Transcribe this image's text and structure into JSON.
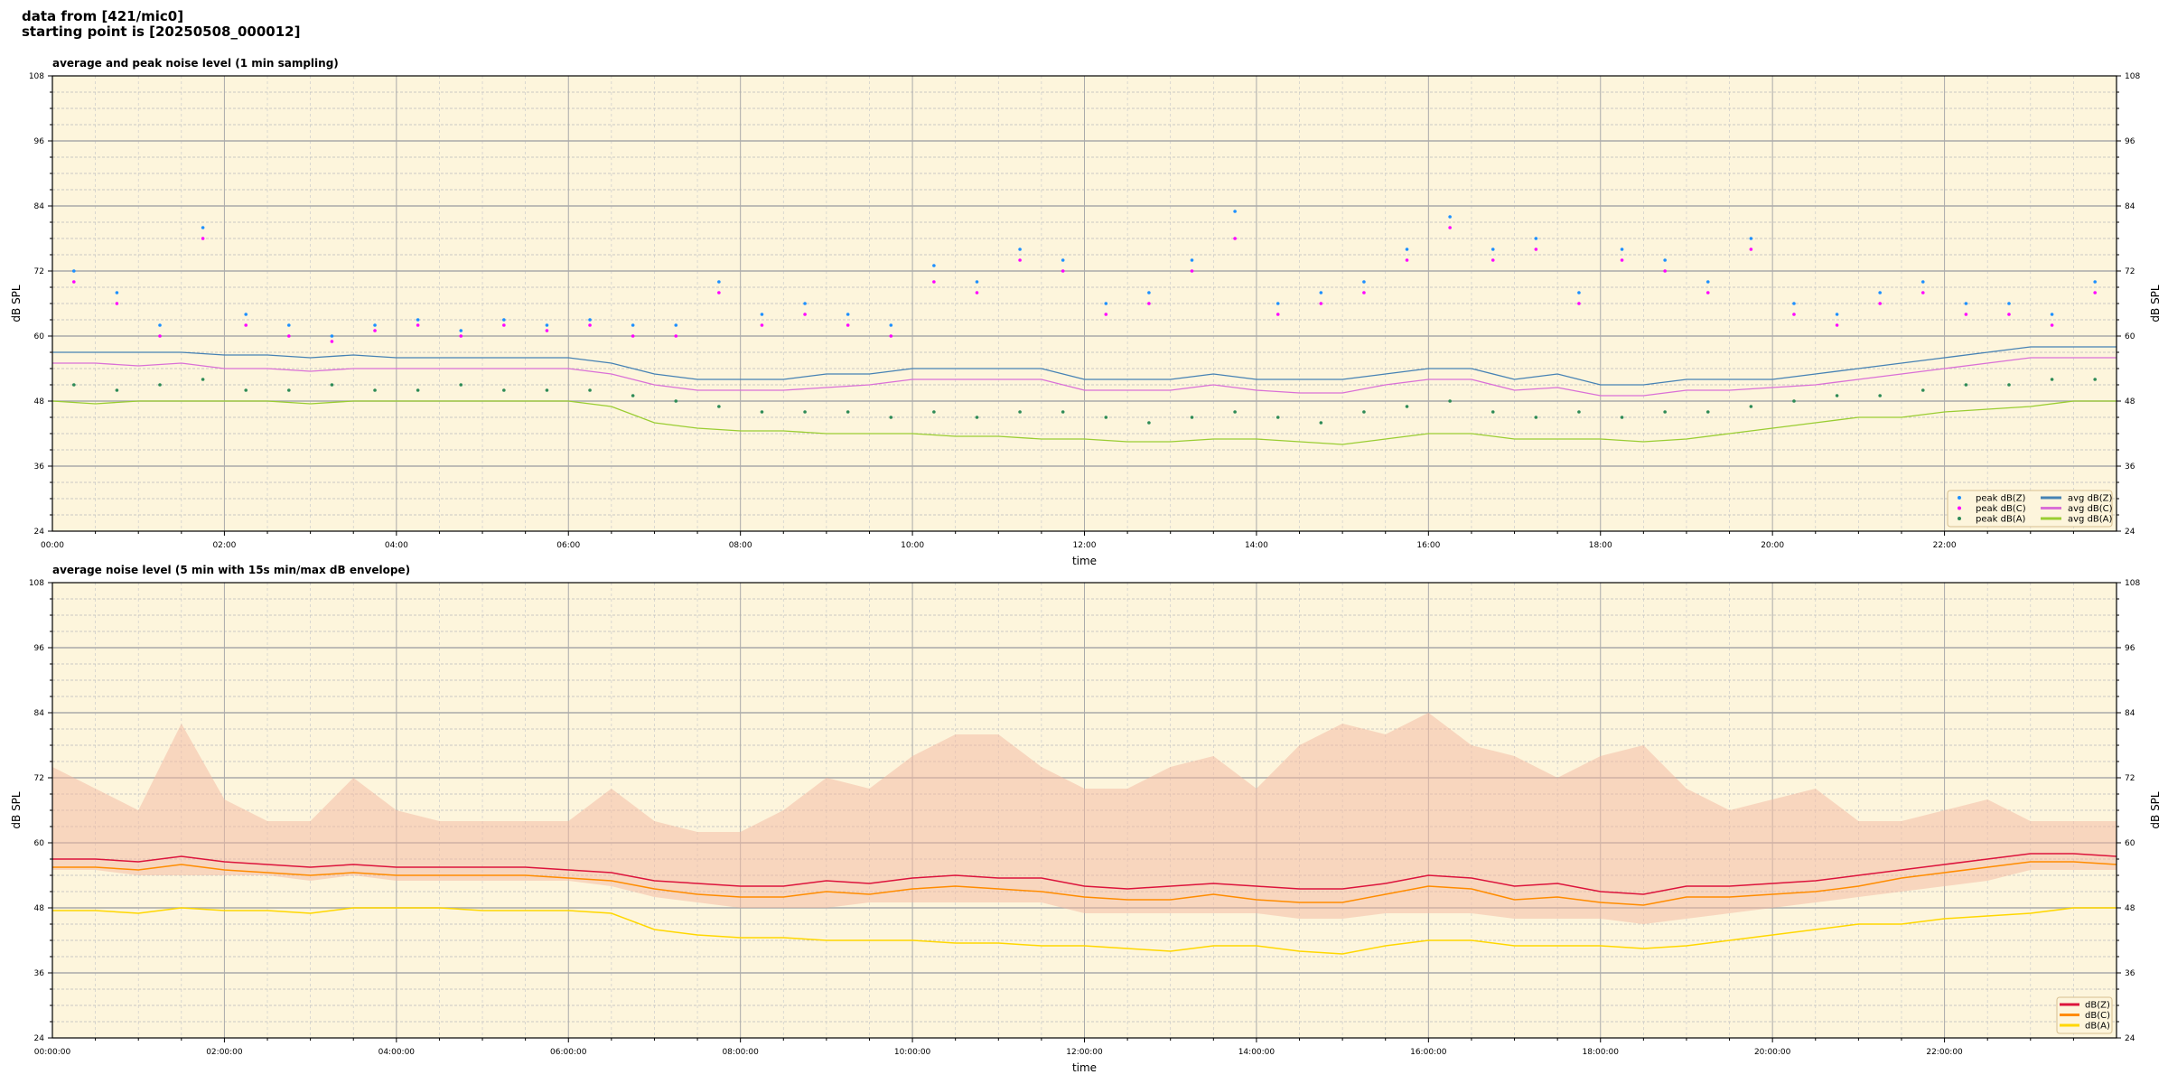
{
  "header": {
    "line1": "data from [421/mic0]",
    "line2": "starting point is [20250508_000012]"
  },
  "colors": {
    "background": "#fdf5dc",
    "peakZ": "#1e90ff",
    "peakC": "#ff00ff",
    "peakA": "#2e8b57",
    "avgZ": "#4682b4",
    "avgC": "#da70d6",
    "avgA": "#9acd32",
    "dBZ": "#dc143c",
    "dBC": "#ff8c00",
    "dBA": "#ffd700",
    "envelope": "#f4b8a0"
  },
  "chart_data": [
    {
      "type": "line",
      "title": "average and peak noise level (1 min sampling)",
      "xlabel": "time",
      "ylabel": "dB SPL",
      "ylim": [
        24,
        108
      ],
      "xlim_hours": [
        0,
        24
      ],
      "yticks": [
        "24",
        "36",
        "48",
        "60",
        "72",
        "84",
        "96",
        "108"
      ],
      "xticks": [
        "00:00",
        "02:00",
        "04:00",
        "06:00",
        "08:00",
        "10:00",
        "12:00",
        "14:00",
        "16:00",
        "18:00",
        "20:00",
        "22:00"
      ],
      "grid": true,
      "legend_position": "lower-right",
      "x_hours_step": 0.5,
      "series": [
        {
          "name": "peak dB(Z)",
          "kind": "scatter",
          "color_key": "peakZ",
          "values": [
            72,
            68,
            62,
            80,
            64,
            62,
            60,
            62,
            63,
            61,
            63,
            62,
            63,
            62,
            62,
            70,
            64,
            66,
            64,
            62,
            73,
            70,
            76,
            74,
            66,
            68,
            74,
            83,
            66,
            68,
            70,
            76,
            82,
            76,
            78,
            68,
            76,
            74,
            70,
            78,
            66,
            64,
            68,
            70,
            66,
            66,
            64,
            70
          ]
        },
        {
          "name": "peak dB(C)",
          "kind": "scatter",
          "color_key": "peakC",
          "values": [
            70,
            66,
            60,
            78,
            62,
            60,
            59,
            61,
            62,
            60,
            62,
            61,
            62,
            60,
            60,
            68,
            62,
            64,
            62,
            60,
            70,
            68,
            74,
            72,
            64,
            66,
            72,
            78,
            64,
            66,
            68,
            74,
            80,
            74,
            76,
            66,
            74,
            72,
            68,
            76,
            64,
            62,
            66,
            68,
            64,
            64,
            62,
            68
          ]
        },
        {
          "name": "peak dB(A)",
          "kind": "scatter",
          "color_key": "peakA",
          "values": [
            51,
            50,
            51,
            52,
            50,
            50,
            51,
            50,
            50,
            51,
            50,
            50,
            50,
            49,
            48,
            47,
            46,
            46,
            46,
            45,
            46,
            45,
            46,
            46,
            45,
            44,
            45,
            46,
            45,
            44,
            46,
            47,
            48,
            46,
            45,
            46,
            45,
            46,
            46,
            47,
            48,
            49,
            49,
            50,
            51,
            51,
            52,
            52
          ]
        },
        {
          "name": "avg dB(Z)",
          "kind": "line",
          "color_key": "avgZ",
          "values": [
            57,
            57,
            57,
            57,
            56.5,
            56.5,
            56,
            56.5,
            56,
            56,
            56,
            56,
            56,
            55,
            53,
            52,
            52,
            52,
            53,
            53,
            54,
            54,
            54,
            54,
            52,
            52,
            52,
            53,
            52,
            52,
            52,
            53,
            54,
            54,
            52,
            53,
            51,
            51,
            52,
            52,
            52,
            53,
            54,
            55,
            56,
            57,
            58,
            58,
            58
          ]
        },
        {
          "name": "avg dB(C)",
          "kind": "line",
          "color_key": "avgC",
          "values": [
            55,
            55,
            54.5,
            55,
            54,
            54,
            53.5,
            54,
            54,
            54,
            54,
            54,
            54,
            53,
            51,
            50,
            50,
            50,
            50.5,
            51,
            52,
            52,
            52,
            52,
            50,
            50,
            50,
            51,
            50,
            49.5,
            49.5,
            51,
            52,
            52,
            50,
            50.5,
            49,
            49,
            50,
            50,
            50.5,
            51,
            52,
            53,
            54,
            55,
            56,
            56,
            56
          ]
        },
        {
          "name": "avg dB(A)",
          "kind": "line",
          "color_key": "avgA",
          "values": [
            48,
            47.5,
            48,
            48,
            48,
            48,
            47.5,
            48,
            48,
            48,
            48,
            48,
            48,
            47,
            44,
            43,
            42.5,
            42.5,
            42,
            42,
            42,
            41.5,
            41.5,
            41,
            41,
            40.5,
            40.5,
            41,
            41,
            40.5,
            40,
            41,
            42,
            42,
            41,
            41,
            41,
            40.5,
            41,
            42,
            43,
            44,
            45,
            45,
            46,
            46.5,
            47,
            48,
            48
          ]
        }
      ]
    },
    {
      "type": "line",
      "title": "average noise level (5 min with 15s min/max dB envelope)",
      "xlabel": "time",
      "ylabel": "dB SPL",
      "ylim": [
        24,
        108
      ],
      "xlim_hours": [
        0,
        24
      ],
      "yticks": [
        "24",
        "36",
        "48",
        "60",
        "72",
        "84",
        "96",
        "108"
      ],
      "xticks": [
        "00:00:00",
        "02:00:00",
        "04:00:00",
        "06:00:00",
        "08:00:00",
        "10:00:00",
        "12:00:00",
        "14:00:00",
        "16:00:00",
        "18:00:00",
        "20:00:00",
        "22:00:00"
      ],
      "grid": true,
      "legend_position": "lower-right",
      "x_hours_step": 0.5,
      "envelope_max": [
        74,
        70,
        66,
        82,
        68,
        64,
        64,
        72,
        66,
        64,
        64,
        64,
        64,
        70,
        64,
        62,
        62,
        66,
        72,
        70,
        76,
        80,
        80,
        74,
        70,
        70,
        74,
        76,
        70,
        78,
        82,
        80,
        84,
        78,
        76,
        72,
        76,
        78,
        70,
        66,
        68,
        70,
        64,
        64,
        66,
        68,
        64,
        64,
        64
      ],
      "envelope_min": [
        55,
        55,
        54,
        54,
        54,
        54,
        53,
        54,
        53,
        53,
        53,
        53,
        53,
        52,
        50,
        49,
        48,
        48,
        48,
        49,
        49,
        49,
        49,
        49,
        47,
        47,
        47,
        47,
        47,
        46,
        46,
        47,
        47,
        47,
        46,
        46,
        46,
        45,
        46,
        47,
        48,
        49,
        50,
        51,
        52,
        53,
        55,
        55,
        55
      ],
      "series": [
        {
          "name": "dB(Z)",
          "color_key": "dBZ",
          "values": [
            57,
            57,
            56.5,
            57.5,
            56.5,
            56,
            55.5,
            56,
            55.5,
            55.5,
            55.5,
            55.5,
            55,
            54.5,
            53,
            52.5,
            52,
            52,
            53,
            52.5,
            53.5,
            54,
            53.5,
            53.5,
            52,
            51.5,
            52,
            52.5,
            52,
            51.5,
            51.5,
            52.5,
            54,
            53.5,
            52,
            52.5,
            51,
            50.5,
            52,
            52,
            52.5,
            53,
            54,
            55,
            56,
            57,
            58,
            58,
            57.5
          ]
        },
        {
          "name": "dB(C)",
          "color_key": "dBC",
          "values": [
            55.5,
            55.5,
            55,
            56,
            55,
            54.5,
            54,
            54.5,
            54,
            54,
            54,
            54,
            53.5,
            53,
            51.5,
            50.5,
            50,
            50,
            51,
            50.5,
            51.5,
            52,
            51.5,
            51,
            50,
            49.5,
            49.5,
            50.5,
            49.5,
            49,
            49,
            50.5,
            52,
            51.5,
            49.5,
            50,
            49,
            48.5,
            50,
            50,
            50.5,
            51,
            52,
            53.5,
            54.5,
            55.5,
            56.5,
            56.5,
            56
          ]
        },
        {
          "name": "dB(A)",
          "color_key": "dBA",
          "values": [
            47.5,
            47.5,
            47,
            48,
            47.5,
            47.5,
            47,
            48,
            48,
            48,
            47.5,
            47.5,
            47.5,
            47,
            44,
            43,
            42.5,
            42.5,
            42,
            42,
            42,
            41.5,
            41.5,
            41,
            41,
            40.5,
            40,
            41,
            41,
            40,
            39.5,
            41,
            42,
            42,
            41,
            41,
            41,
            40.5,
            41,
            42,
            43,
            44,
            45,
            45,
            46,
            46.5,
            47,
            48,
            48
          ]
        }
      ]
    }
  ]
}
